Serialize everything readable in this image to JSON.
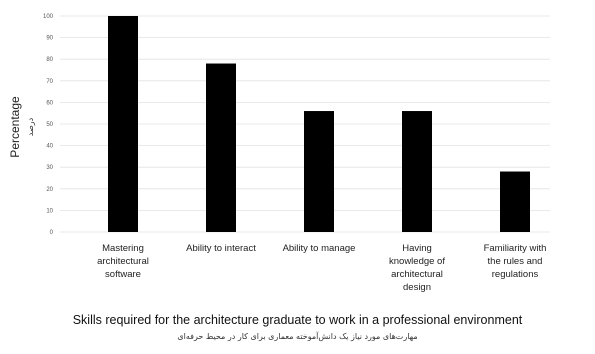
{
  "chart_data": {
    "type": "bar",
    "title": "Skills required for the architecture graduate to work in a professional environment",
    "subtitle": "مهارت‌های مورد نیاز یک دانش‌آموخته معماری برای کار در محیط حرفه‌ای",
    "ylabel": "Percentage",
    "ylabel_secondary": "درصد",
    "xlabel": "",
    "ylim": [
      0,
      100
    ],
    "yticks": [
      "0",
      "10",
      "20",
      "30",
      "40",
      "50",
      "60",
      "70",
      "80",
      "90",
      "100"
    ],
    "grid": true,
    "bar_color": "#000000",
    "categories": [
      [
        "Mastering",
        "architectural",
        "software"
      ],
      [
        "Ability to interact"
      ],
      [
        "Ability to manage"
      ],
      [
        "Having",
        "knowledge of",
        "architectural",
        "design"
      ],
      [
        "Familiarity with",
        "the rules and",
        "regulations"
      ]
    ],
    "values": [
      100,
      78,
      56,
      56,
      28
    ]
  }
}
